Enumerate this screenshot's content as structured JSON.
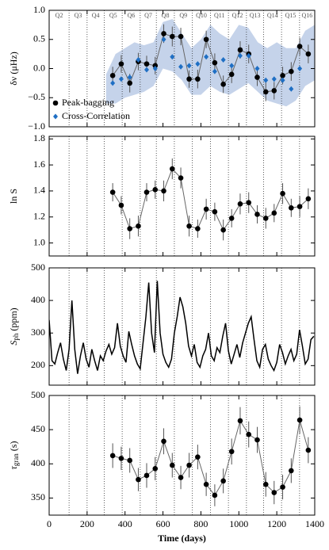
{
  "chart_data": [
    {
      "type": "errorbar",
      "ylabel": "δν (μHz)",
      "xlim": [
        0,
        1400
      ],
      "xticks": [
        0,
        200,
        400,
        600,
        800,
        1000,
        1200,
        1400
      ],
      "ylim": [
        -1,
        1
      ],
      "yticks": [
        {
          "value": -1,
          "label": "−1.0"
        },
        {
          "value": -0.5,
          "label": "−0.5"
        },
        {
          "value": 0,
          "label": "0.0"
        },
        0.5,
        {
          "value": 1,
          "label": "1.0"
        }
      ],
      "vlines": [
        105,
        200,
        290,
        385,
        480,
        565,
        660,
        755,
        850,
        945,
        1040,
        1130,
        1225,
        1320
      ],
      "quarters": [
        "Q2",
        "Q3",
        "Q4",
        "Q5",
        "Q6",
        "Q7",
        "Q8",
        "Q9",
        "Q10",
        "Q11",
        "Q12",
        "Q13",
        "Q14",
        "Q15",
        "Q16"
      ],
      "legend": "lower left",
      "band": {
        "color": "#c5d3ea",
        "x": [
          300,
          350,
          400,
          450,
          500,
          550,
          600,
          650,
          700,
          750,
          800,
          850,
          900,
          950,
          1000,
          1050,
          1100,
          1150,
          1200,
          1250,
          1300,
          1350,
          1400
        ],
        "upper": [
          -0.1,
          0.25,
          0.35,
          0.45,
          0.4,
          0.45,
          0.8,
          0.85,
          0.6,
          0.35,
          0.5,
          0.75,
          0.6,
          0.5,
          0.75,
          0.7,
          0.45,
          0.35,
          0.45,
          0.35,
          0.35,
          0.65,
          0.75
        ],
        "lower": [
          -0.6,
          -0.6,
          -0.5,
          -0.45,
          -0.4,
          -0.3,
          0.0,
          -0.05,
          -0.2,
          -0.45,
          -0.45,
          -0.3,
          -0.4,
          -0.45,
          -0.35,
          -0.25,
          -0.4,
          -0.55,
          -0.6,
          -0.65,
          -0.55,
          -0.3,
          -0.2
        ]
      },
      "series": [
        {
          "name": "Peak-bagging",
          "color": "#000000",
          "marker": "circle",
          "connect": true,
          "x": [
            335,
            380,
            425,
            470,
            514,
            559,
            604,
            649,
            694,
            738,
            783,
            828,
            873,
            918,
            962,
            1007,
            1052,
            1097,
            1142,
            1186,
            1231,
            1276,
            1321,
            1366
          ],
          "values": [
            -0.12,
            0.08,
            -0.25,
            0.12,
            0.08,
            0.05,
            0.6,
            0.55,
            0.55,
            -0.18,
            -0.18,
            0.5,
            0.1,
            -0.27,
            -0.1,
            0.32,
            0.25,
            -0.15,
            -0.4,
            -0.38,
            -0.12,
            -0.05,
            0.38,
            0.25
          ],
          "errors": [
            0.15,
            0.15,
            0.16,
            0.15,
            0.14,
            0.15,
            0.16,
            0.17,
            0.15,
            0.15,
            0.16,
            0.15,
            0.16,
            0.15,
            0.15,
            0.15,
            0.16,
            0.15,
            0.16,
            0.15,
            0.15,
            0.16,
            0.15,
            0.16
          ]
        },
        {
          "name": "Cross-Correlation",
          "color": "#1f6fc4",
          "marker": "diamond",
          "connect": false,
          "x": [
            335,
            380,
            425,
            470,
            514,
            559,
            604,
            649,
            694,
            738,
            783,
            828,
            873,
            918,
            962,
            1007,
            1052,
            1097,
            1142,
            1186,
            1231,
            1276,
            1321
          ],
          "values": [
            -0.25,
            -0.18,
            -0.15,
            0.15,
            -0.02,
            0.0,
            0.5,
            0.2,
            0.03,
            0.05,
            0.08,
            0.2,
            -0.05,
            0.15,
            0.05,
            0.22,
            0.22,
            0.0,
            -0.2,
            -0.18,
            -0.2,
            -0.35,
            0.0
          ]
        }
      ]
    },
    {
      "type": "errorbar",
      "ylabel": "ln S",
      "xlim": [
        0,
        1400
      ],
      "xticks": [
        0,
        200,
        400,
        600,
        800,
        1000,
        1200,
        1400
      ],
      "ylim": [
        0.9,
        1.82
      ],
      "yticks": [
        {
          "value": 1,
          "label": "1.0"
        },
        1.2,
        1.4,
        1.6,
        1.8
      ],
      "vlines": [
        105,
        200,
        290,
        385,
        480,
        565,
        660,
        755,
        850,
        945,
        1040,
        1130,
        1225,
        1320
      ],
      "series": [
        {
          "color": "#000000",
          "marker": "circle",
          "connect": true,
          "x": [
            335,
            380,
            425,
            470,
            514,
            559,
            604,
            649,
            694,
            738,
            783,
            828,
            873,
            918,
            962,
            1007,
            1052,
            1097,
            1142,
            1186,
            1231,
            1276,
            1321,
            1366
          ],
          "values": [
            1.39,
            1.29,
            1.11,
            1.13,
            1.39,
            1.41,
            1.4,
            1.57,
            1.5,
            1.13,
            1.11,
            1.26,
            1.24,
            1.1,
            1.19,
            1.3,
            1.31,
            1.22,
            1.19,
            1.23,
            1.38,
            1.27,
            1.28,
            1.34
          ],
          "errors": [
            0.07,
            0.07,
            0.08,
            0.08,
            0.07,
            0.07,
            0.08,
            0.08,
            0.08,
            0.08,
            0.07,
            0.08,
            0.07,
            0.08,
            0.07,
            0.08,
            0.08,
            0.07,
            0.08,
            0.07,
            0.08,
            0.07,
            0.08,
            0.08
          ]
        }
      ]
    },
    {
      "type": "line",
      "ylabel": {
        "main": "S",
        "sub": "ph",
        "unit": "(ppm)"
      },
      "xlim": [
        0,
        1400
      ],
      "xticks": [
        0,
        200,
        400,
        600,
        800,
        1000,
        1200,
        1400
      ],
      "ylim": [
        140,
        500
      ],
      "yticks": [
        200,
        300,
        400,
        500
      ],
      "vlines": [
        105,
        200,
        290,
        385,
        480,
        565,
        660,
        755,
        850,
        945,
        1040,
        1130,
        1225,
        1320
      ],
      "series": [
        {
          "color": "#000000",
          "x": [
            0,
            15,
            30,
            45,
            60,
            75,
            90,
            105,
            120,
            135,
            150,
            165,
            180,
            195,
            210,
            225,
            240,
            255,
            270,
            285,
            300,
            315,
            330,
            345,
            360,
            375,
            390,
            405,
            420,
            435,
            450,
            465,
            480,
            495,
            510,
            525,
            540,
            555,
            570,
            585,
            600,
            615,
            630,
            645,
            660,
            675,
            690,
            705,
            720,
            735,
            750,
            765,
            780,
            795,
            810,
            825,
            840,
            855,
            870,
            885,
            900,
            915,
            930,
            945,
            960,
            975,
            990,
            1005,
            1020,
            1035,
            1050,
            1065,
            1080,
            1095,
            1110,
            1125,
            1140,
            1155,
            1170,
            1185,
            1200,
            1215,
            1230,
            1245,
            1260,
            1275,
            1290,
            1305,
            1320,
            1335,
            1350,
            1365,
            1380,
            1395
          ],
          "values": [
            340,
            215,
            205,
            240,
            270,
            220,
            185,
            250,
            400,
            250,
            175,
            230,
            270,
            220,
            195,
            250,
            215,
            185,
            230,
            215,
            245,
            265,
            235,
            255,
            330,
            260,
            230,
            210,
            305,
            265,
            230,
            205,
            190,
            270,
            350,
            455,
            300,
            240,
            460,
            300,
            235,
            210,
            195,
            220,
            300,
            350,
            410,
            380,
            330,
            260,
            230,
            265,
            210,
            195,
            230,
            250,
            300,
            230,
            215,
            255,
            240,
            290,
            330,
            245,
            205,
            235,
            265,
            225,
            270,
            300,
            330,
            350,
            280,
            215,
            195,
            250,
            265,
            220,
            200,
            185,
            210,
            265,
            240,
            205,
            230,
            250,
            215,
            235,
            310,
            260,
            205,
            220,
            280,
            290
          ]
        }
      ]
    },
    {
      "type": "errorbar",
      "ylabel": {
        "main": "τ",
        "sub": "gran",
        "unit": "(s)"
      },
      "xlabel": "Time (days)",
      "xlim": [
        0,
        1400
      ],
      "xticks": [
        0,
        200,
        400,
        600,
        800,
        1000,
        1200,
        1400
      ],
      "ylim": [
        325,
        500
      ],
      "yticks": [
        350,
        400,
        450,
        500
      ],
      "vlines": [
        105,
        200,
        290,
        385,
        480,
        565,
        660,
        755,
        850,
        945,
        1040,
        1130,
        1225,
        1320
      ],
      "series": [
        {
          "color": "#000000",
          "marker": "circle",
          "connect": true,
          "x": [
            335,
            380,
            425,
            470,
            514,
            559,
            604,
            649,
            694,
            738,
            783,
            828,
            873,
            918,
            962,
            1007,
            1052,
            1097,
            1142,
            1186,
            1231,
            1276,
            1321,
            1366
          ],
          "values": [
            412,
            408,
            405,
            377,
            383,
            393,
            433,
            398,
            380,
            398,
            410,
            370,
            354,
            375,
            418,
            463,
            443,
            435,
            370,
            358,
            366,
            390,
            464,
            420
          ],
          "errors": [
            18,
            17,
            18,
            17,
            18,
            17,
            19,
            18,
            17,
            18,
            18,
            17,
            16,
            18,
            19,
            20,
            19,
            19,
            18,
            17,
            18,
            18,
            20,
            19
          ]
        }
      ]
    }
  ]
}
